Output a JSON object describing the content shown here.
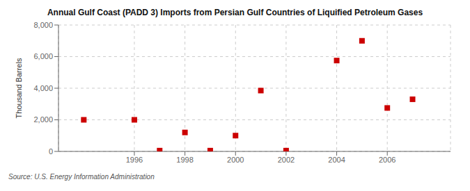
{
  "chart_data": {
    "type": "scatter",
    "title": "Annual Gulf Coast (PADD 3) Imports from Persian Gulf Countries of Liquified Petroleum Gases",
    "y_label": "Thousand Barrels",
    "annotations": [
      "Source: U.S. Energy Information Administration"
    ],
    "x": [
      1994,
      1996,
      1997,
      1998,
      1999,
      2000,
      2001,
      2002,
      2004,
      2005,
      2006,
      2007
    ],
    "values": [
      2000,
      2000,
      50,
      1200,
      50,
      1000,
      3850,
      50,
      5750,
      7000,
      2750,
      3300
    ],
    "color": "#cc0000",
    "marker": "square",
    "xlim": [
      1993.0,
      2008.5
    ],
    "ylim": [
      0,
      8000
    ],
    "xticks": [
      1996,
      1998,
      2000,
      2002,
      2004,
      2006
    ],
    "yticks": [
      0,
      {
        "value": 2000,
        "label": "2,000"
      },
      {
        "value": 4000,
        "label": "4,000"
      },
      {
        "value": 6000,
        "label": "6,000"
      },
      {
        "value": 8000,
        "label": "8,000"
      }
    ],
    "grid": true
  }
}
